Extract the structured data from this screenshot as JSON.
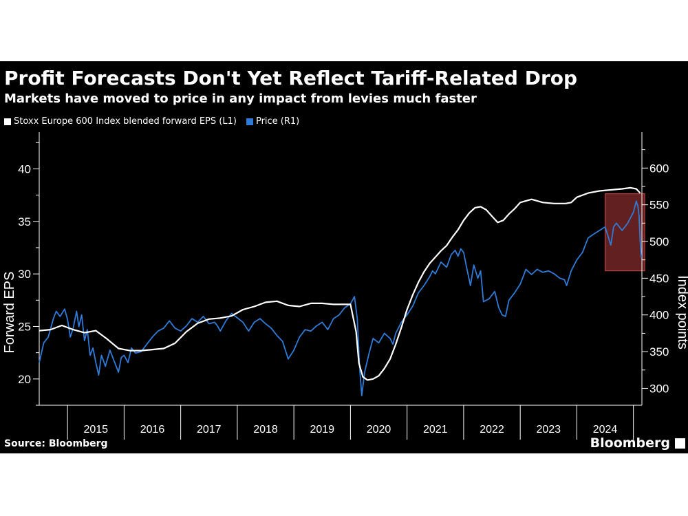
{
  "title": "Profit Forecasts Don't Yet Reflect Tariff-Related Drop",
  "subtitle": "Markets have moved to price in any impact from levies much faster",
  "source": "Source: Bloomberg",
  "brand": "Bloomberg",
  "chart_data": {
    "type": "line",
    "x_range": [
      2014.5,
      2025.15
    ],
    "x_tick_labels": [
      "2015",
      "2016",
      "2017",
      "2018",
      "2019",
      "2020",
      "2021",
      "2022",
      "2023",
      "2024"
    ],
    "left_axis": {
      "label": "Forward EPS",
      "range": [
        17.5,
        43.5
      ],
      "ticks": [
        20,
        25,
        30,
        35,
        40
      ]
    },
    "right_axis": {
      "label": "Index points",
      "range": [
        277,
        649
      ],
      "ticks": [
        300,
        350,
        400,
        450,
        500,
        550,
        600
      ]
    },
    "legend_position": "top-left",
    "grid": false,
    "highlight": {
      "x_range": [
        2024.5,
        2025.2
      ],
      "y_right_range": [
        460,
        565
      ],
      "color": "#b33a3a"
    },
    "series": [
      {
        "name": "Stoxx Europe 600 Index blended forward EPS (L1)",
        "axis": "left",
        "color": "#ffffff",
        "points": [
          [
            2014.5,
            24.6
          ],
          [
            2014.7,
            24.7
          ],
          [
            2014.9,
            25.1
          ],
          [
            2015.1,
            24.7
          ],
          [
            2015.3,
            24.4
          ],
          [
            2015.5,
            24.6
          ],
          [
            2015.7,
            23.8
          ],
          [
            2015.9,
            22.9
          ],
          [
            2016.1,
            22.7
          ],
          [
            2016.3,
            22.7
          ],
          [
            2016.5,
            22.8
          ],
          [
            2016.7,
            22.9
          ],
          [
            2016.9,
            23.4
          ],
          [
            2017.1,
            24.5
          ],
          [
            2017.3,
            25.3
          ],
          [
            2017.5,
            25.7
          ],
          [
            2017.7,
            25.8
          ],
          [
            2017.9,
            26.0
          ],
          [
            2018.1,
            26.6
          ],
          [
            2018.3,
            26.9
          ],
          [
            2018.5,
            27.3
          ],
          [
            2018.7,
            27.4
          ],
          [
            2018.9,
            27.0
          ],
          [
            2019.1,
            26.9
          ],
          [
            2019.3,
            27.2
          ],
          [
            2019.5,
            27.2
          ],
          [
            2019.7,
            27.1
          ],
          [
            2019.85,
            27.1
          ],
          [
            2020.0,
            27.1
          ],
          [
            2020.1,
            24.5
          ],
          [
            2020.15,
            21.5
          ],
          [
            2020.22,
            20.2
          ],
          [
            2020.3,
            19.9
          ],
          [
            2020.4,
            20.0
          ],
          [
            2020.5,
            20.3
          ],
          [
            2020.6,
            21.0
          ],
          [
            2020.7,
            21.9
          ],
          [
            2020.8,
            23.3
          ],
          [
            2020.9,
            24.9
          ],
          [
            2021.0,
            26.6
          ],
          [
            2021.1,
            28.0
          ],
          [
            2021.2,
            29.2
          ],
          [
            2021.3,
            30.2
          ],
          [
            2021.4,
            31.0
          ],
          [
            2021.5,
            31.6
          ],
          [
            2021.6,
            32.2
          ],
          [
            2021.7,
            32.7
          ],
          [
            2021.8,
            33.5
          ],
          [
            2021.9,
            34.2
          ],
          [
            2022.0,
            35.1
          ],
          [
            2022.1,
            35.8
          ],
          [
            2022.2,
            36.3
          ],
          [
            2022.3,
            36.4
          ],
          [
            2022.4,
            36.1
          ],
          [
            2022.5,
            35.5
          ],
          [
            2022.6,
            34.9
          ],
          [
            2022.7,
            35.1
          ],
          [
            2022.8,
            35.7
          ],
          [
            2022.9,
            36.2
          ],
          [
            2023.0,
            36.8
          ],
          [
            2023.2,
            37.1
          ],
          [
            2023.4,
            36.8
          ],
          [
            2023.6,
            36.7
          ],
          [
            2023.8,
            36.7
          ],
          [
            2023.9,
            36.8
          ],
          [
            2024.0,
            37.3
          ],
          [
            2024.2,
            37.7
          ],
          [
            2024.4,
            37.9
          ],
          [
            2024.6,
            38.0
          ],
          [
            2024.8,
            38.1
          ],
          [
            2024.95,
            38.2
          ],
          [
            2025.05,
            38.1
          ],
          [
            2025.12,
            37.7
          ]
        ]
      },
      {
        "name": "Price (R1)",
        "axis": "right",
        "color": "#2f7bd8",
        "points": [
          [
            2014.5,
            335
          ],
          [
            2014.58,
            362
          ],
          [
            2014.66,
            370
          ],
          [
            2014.75,
            395
          ],
          [
            2014.8,
            405
          ],
          [
            2014.87,
            398
          ],
          [
            2014.95,
            408
          ],
          [
            2015.0,
            394
          ],
          [
            2015.05,
            370
          ],
          [
            2015.1,
            382
          ],
          [
            2015.16,
            405
          ],
          [
            2015.2,
            384
          ],
          [
            2015.25,
            400
          ],
          [
            2015.3,
            365
          ],
          [
            2015.35,
            380
          ],
          [
            2015.4,
            345
          ],
          [
            2015.45,
            355
          ],
          [
            2015.5,
            335
          ],
          [
            2015.55,
            318
          ],
          [
            2015.6,
            345
          ],
          [
            2015.67,
            330
          ],
          [
            2015.75,
            352
          ],
          [
            2015.82,
            338
          ],
          [
            2015.9,
            322
          ],
          [
            2015.95,
            342
          ],
          [
            2016.0,
            345
          ],
          [
            2016.07,
            335
          ],
          [
            2016.13,
            355
          ],
          [
            2016.2,
            348
          ],
          [
            2016.3,
            350
          ],
          [
            2016.4,
            360
          ],
          [
            2016.5,
            370
          ],
          [
            2016.6,
            378
          ],
          [
            2016.7,
            382
          ],
          [
            2016.8,
            392
          ],
          [
            2016.9,
            382
          ],
          [
            2017.0,
            378
          ],
          [
            2017.1,
            385
          ],
          [
            2017.2,
            395
          ],
          [
            2017.3,
            390
          ],
          [
            2017.4,
            398
          ],
          [
            2017.5,
            388
          ],
          [
            2017.6,
            390
          ],
          [
            2017.65,
            385
          ],
          [
            2017.7,
            378
          ],
          [
            2017.75,
            385
          ],
          [
            2017.8,
            392
          ],
          [
            2017.9,
            402
          ],
          [
            2018.0,
            396
          ],
          [
            2018.1,
            390
          ],
          [
            2018.2,
            378
          ],
          [
            2018.3,
            390
          ],
          [
            2018.4,
            395
          ],
          [
            2018.5,
            388
          ],
          [
            2018.6,
            382
          ],
          [
            2018.7,
            372
          ],
          [
            2018.8,
            364
          ],
          [
            2018.9,
            340
          ],
          [
            2019.0,
            352
          ],
          [
            2019.1,
            370
          ],
          [
            2019.2,
            380
          ],
          [
            2019.3,
            378
          ],
          [
            2019.4,
            385
          ],
          [
            2019.5,
            390
          ],
          [
            2019.6,
            380
          ],
          [
            2019.7,
            395
          ],
          [
            2019.8,
            400
          ],
          [
            2019.9,
            410
          ],
          [
            2020.0,
            415
          ],
          [
            2020.07,
            425
          ],
          [
            2020.12,
            395
          ],
          [
            2020.16,
            330
          ],
          [
            2020.2,
            290
          ],
          [
            2020.25,
            322
          ],
          [
            2020.33,
            348
          ],
          [
            2020.4,
            368
          ],
          [
            2020.5,
            362
          ],
          [
            2020.6,
            375
          ],
          [
            2020.7,
            368
          ],
          [
            2020.75,
            360
          ],
          [
            2020.8,
            375
          ],
          [
            2020.9,
            390
          ],
          [
            2021.0,
            400
          ],
          [
            2021.1,
            412
          ],
          [
            2021.2,
            430
          ],
          [
            2021.3,
            440
          ],
          [
            2021.4,
            452
          ],
          [
            2021.45,
            460
          ],
          [
            2021.5,
            456
          ],
          [
            2021.6,
            472
          ],
          [
            2021.7,
            465
          ],
          [
            2021.78,
            482
          ],
          [
            2021.85,
            488
          ],
          [
            2021.9,
            480
          ],
          [
            2021.95,
            490
          ],
          [
            2022.0,
            485
          ],
          [
            2022.06,
            462
          ],
          [
            2022.12,
            440
          ],
          [
            2022.18,
            468
          ],
          [
            2022.25,
            450
          ],
          [
            2022.3,
            460
          ],
          [
            2022.35,
            418
          ],
          [
            2022.45,
            422
          ],
          [
            2022.55,
            432
          ],
          [
            2022.62,
            410
          ],
          [
            2022.68,
            400
          ],
          [
            2022.74,
            398
          ],
          [
            2022.8,
            420
          ],
          [
            2022.9,
            430
          ],
          [
            2023.0,
            442
          ],
          [
            2023.1,
            462
          ],
          [
            2023.2,
            455
          ],
          [
            2023.3,
            462
          ],
          [
            2023.4,
            458
          ],
          [
            2023.5,
            460
          ],
          [
            2023.6,
            456
          ],
          [
            2023.7,
            450
          ],
          [
            2023.78,
            448
          ],
          [
            2023.82,
            440
          ],
          [
            2023.9,
            460
          ],
          [
            2024.0,
            475
          ],
          [
            2024.1,
            485
          ],
          [
            2024.2,
            505
          ],
          [
            2024.3,
            510
          ],
          [
            2024.4,
            515
          ],
          [
            2024.5,
            520
          ],
          [
            2024.55,
            508
          ],
          [
            2024.6,
            495
          ],
          [
            2024.65,
            520
          ],
          [
            2024.7,
            525
          ],
          [
            2024.8,
            515
          ],
          [
            2024.9,
            525
          ],
          [
            2025.0,
            540
          ],
          [
            2025.05,
            555
          ],
          [
            2025.08,
            548
          ],
          [
            2025.1,
            535
          ],
          [
            2025.12,
            500
          ],
          [
            2025.14,
            478
          ]
        ]
      }
    ]
  }
}
